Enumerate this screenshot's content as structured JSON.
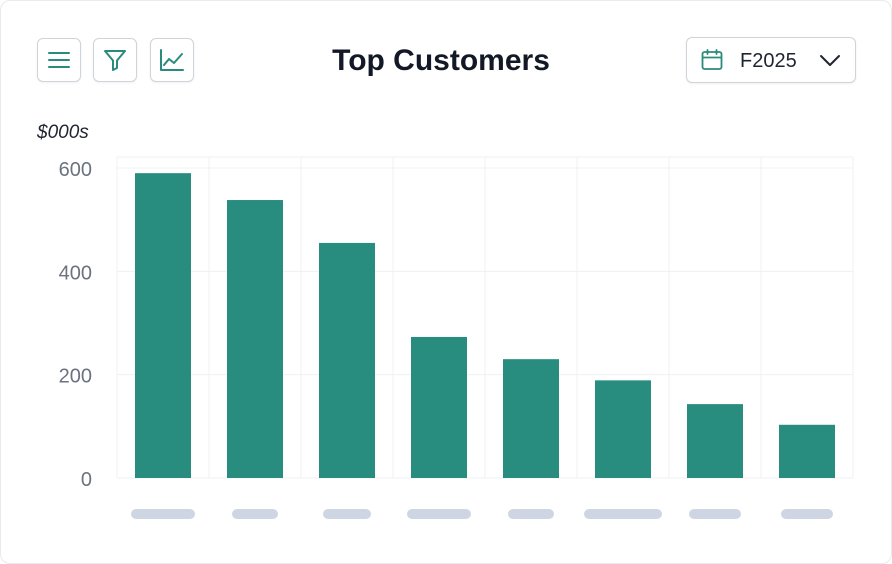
{
  "header": {
    "title": "Top Customers",
    "icons": [
      "menu-icon",
      "filter-icon",
      "line-chart-icon"
    ],
    "date_value": "F2025",
    "date_icon": "calendar-icon"
  },
  "colors": {
    "bar": "#288c7f",
    "accent": "#2a8a7c",
    "grid": "#eef0f3",
    "placeholder_label": "#cfd6e3"
  },
  "chart_data": {
    "type": "bar",
    "title": "Top Customers",
    "ylabel": "$000s",
    "ylim": [
      0,
      620
    ],
    "yticks": [
      0,
      200,
      400,
      600
    ],
    "categories": [
      "",
      "",
      "",
      "",
      "",
      "",
      "",
      ""
    ],
    "values": [
      590,
      538,
      455,
      273,
      230,
      189,
      143,
      103
    ],
    "grid": true,
    "legend": "none"
  }
}
